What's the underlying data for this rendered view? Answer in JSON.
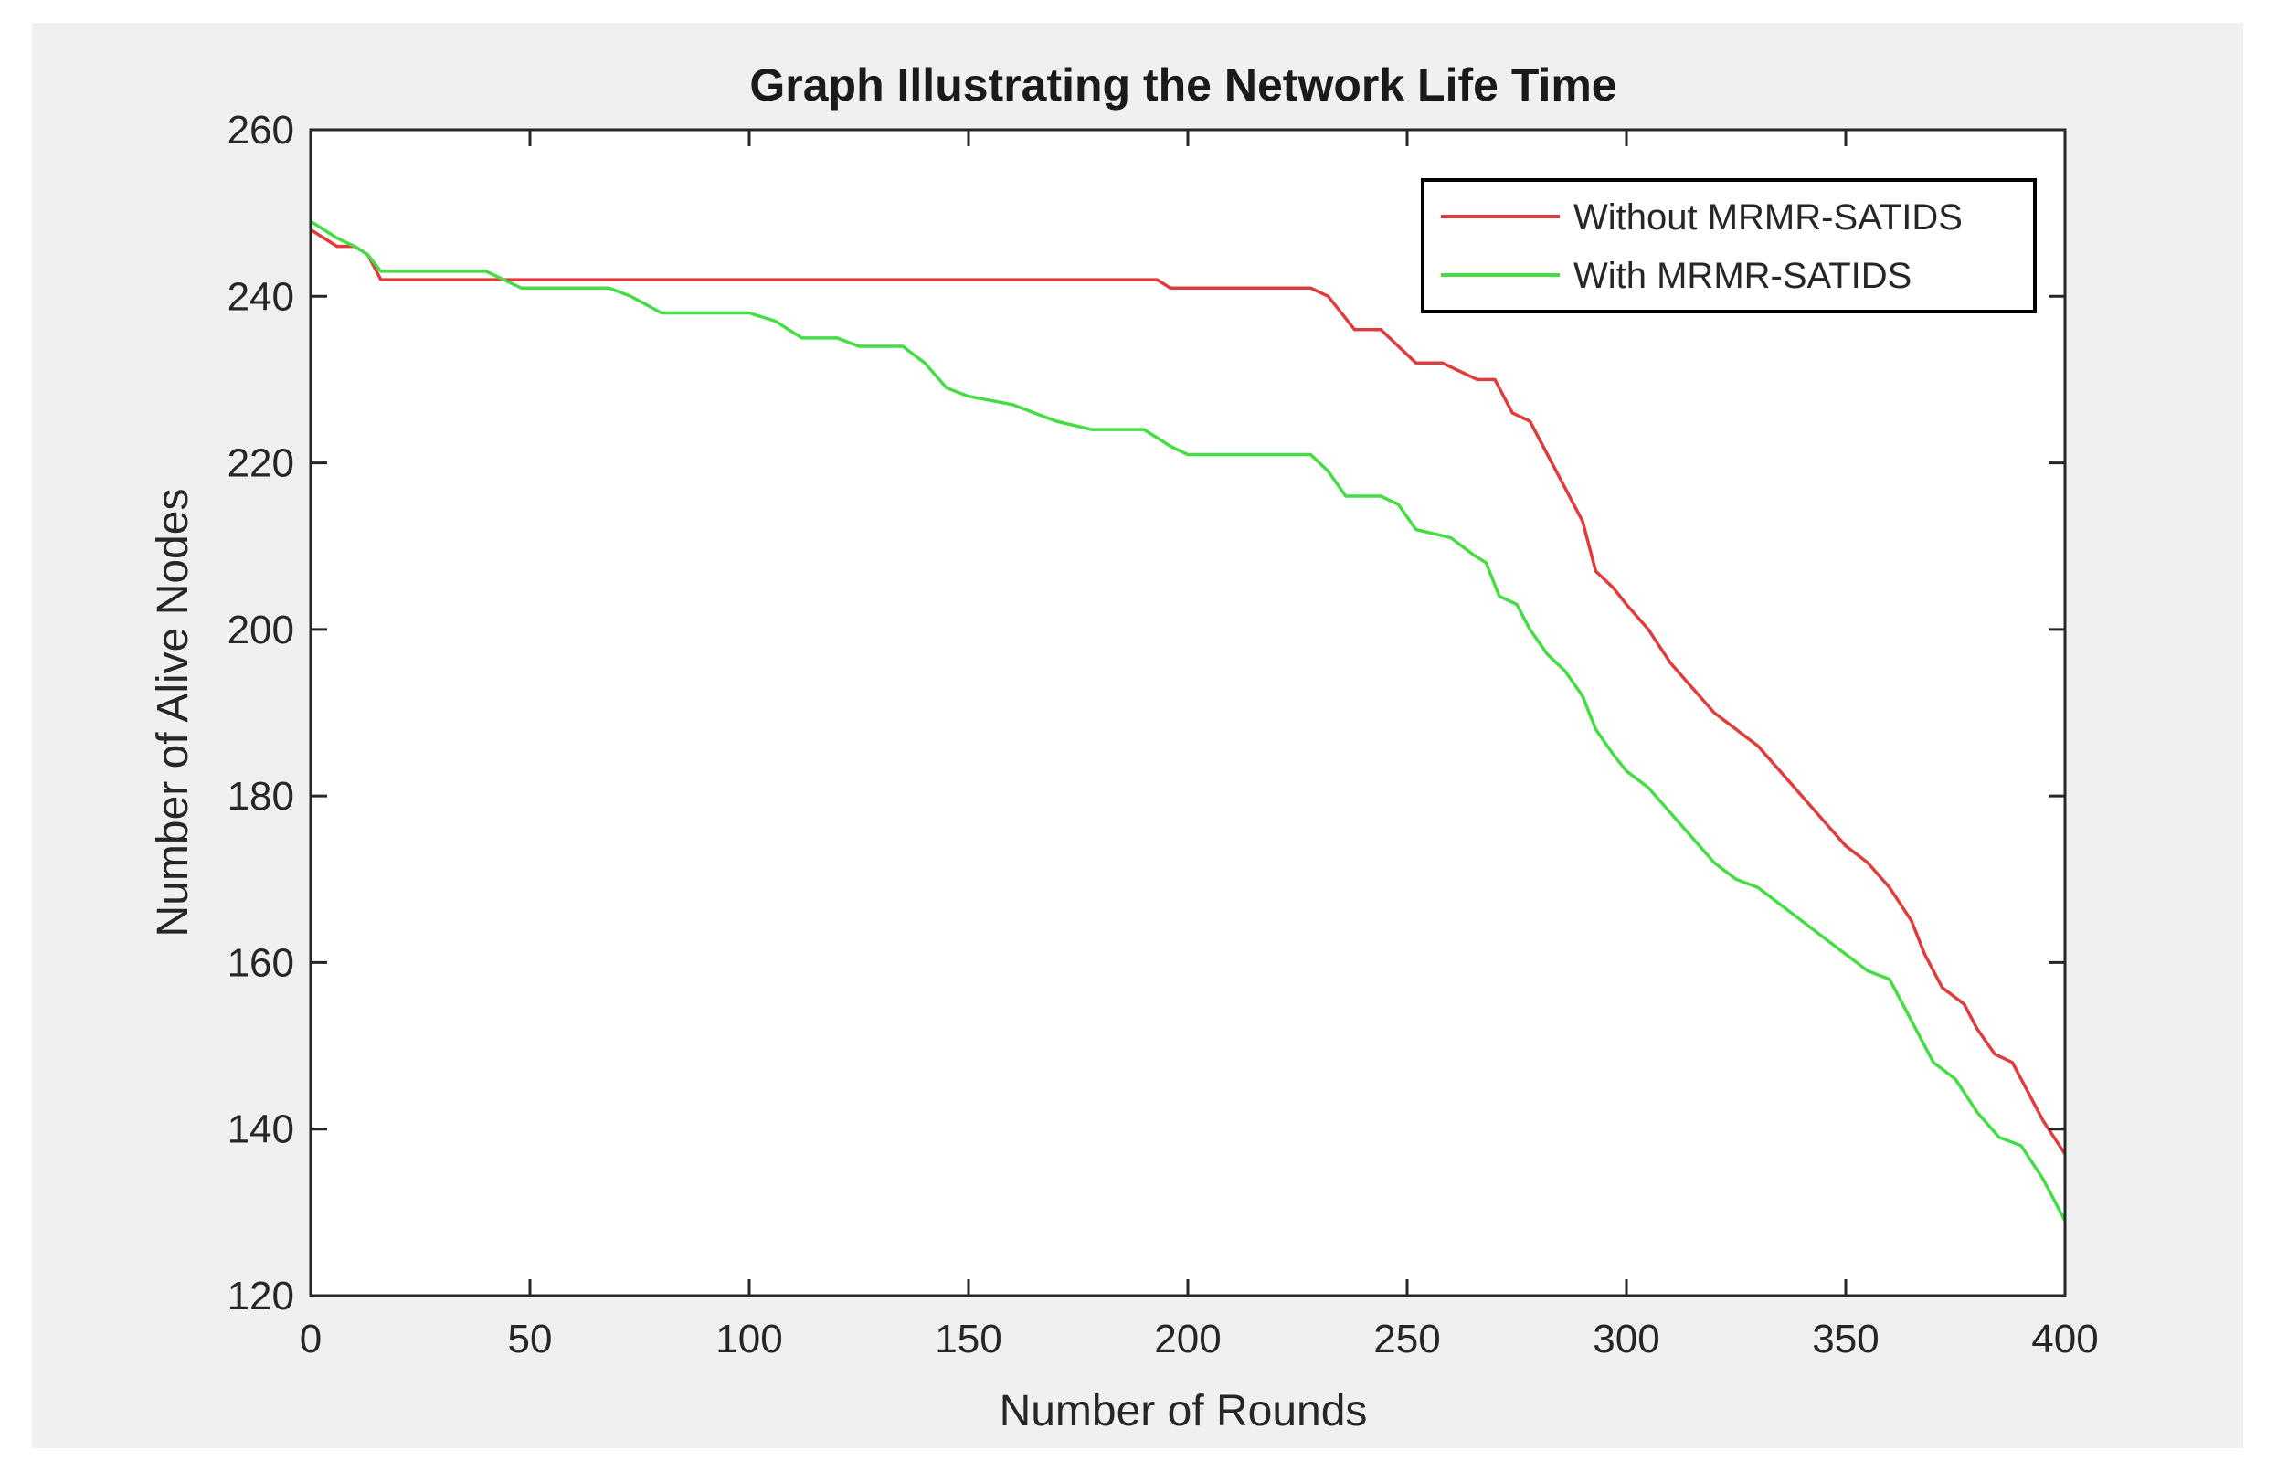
{
  "chart_data": {
    "type": "line",
    "title": "Graph Illustrating the Network Life Time",
    "xlabel": "Number of Rounds",
    "ylabel": "Number of Alive Nodes",
    "xlim": [
      0,
      400
    ],
    "ylim": [
      120,
      260
    ],
    "xticks": [
      0,
      50,
      100,
      150,
      200,
      250,
      300,
      350,
      400
    ],
    "yticks": [
      120,
      140,
      160,
      180,
      200,
      220,
      240,
      260
    ],
    "grid": false,
    "legend_position": "top-right",
    "series": [
      {
        "name": "Without MRMR-SATIDS",
        "color": "#e03c3c",
        "points": [
          [
            0,
            248
          ],
          [
            3,
            247
          ],
          [
            6,
            246
          ],
          [
            10,
            246
          ],
          [
            13,
            245
          ],
          [
            16,
            242
          ],
          [
            30,
            242
          ],
          [
            40,
            242
          ],
          [
            100,
            242
          ],
          [
            150,
            242
          ],
          [
            193,
            242
          ],
          [
            196,
            241
          ],
          [
            228,
            241
          ],
          [
            232,
            240
          ],
          [
            238,
            236
          ],
          [
            244,
            236
          ],
          [
            248,
            234
          ],
          [
            252,
            232
          ],
          [
            258,
            232
          ],
          [
            262,
            231
          ],
          [
            266,
            230
          ],
          [
            270,
            230
          ],
          [
            274,
            226
          ],
          [
            278,
            225
          ],
          [
            282,
            221
          ],
          [
            286,
            217
          ],
          [
            290,
            213
          ],
          [
            293,
            207
          ],
          [
            297,
            205
          ],
          [
            300,
            203
          ],
          [
            305,
            200
          ],
          [
            310,
            196
          ],
          [
            315,
            193
          ],
          [
            320,
            190
          ],
          [
            325,
            188
          ],
          [
            330,
            186
          ],
          [
            335,
            183
          ],
          [
            340,
            180
          ],
          [
            345,
            177
          ],
          [
            350,
            174
          ],
          [
            355,
            172
          ],
          [
            360,
            169
          ],
          [
            365,
            165
          ],
          [
            368,
            161
          ],
          [
            372,
            157
          ],
          [
            377,
            155
          ],
          [
            380,
            152
          ],
          [
            384,
            149
          ],
          [
            388,
            148
          ],
          [
            391,
            145
          ],
          [
            395,
            141
          ],
          [
            400,
            137
          ]
        ]
      },
      {
        "name": "With MRMR-SATIDS",
        "color": "#44dd44",
        "points": [
          [
            0,
            249
          ],
          [
            3,
            248
          ],
          [
            6,
            247
          ],
          [
            10,
            246
          ],
          [
            13,
            245
          ],
          [
            16,
            243
          ],
          [
            30,
            243
          ],
          [
            40,
            243
          ],
          [
            48,
            241
          ],
          [
            60,
            241
          ],
          [
            68,
            241
          ],
          [
            73,
            240
          ],
          [
            80,
            238
          ],
          [
            90,
            238
          ],
          [
            100,
            238
          ],
          [
            106,
            237
          ],
          [
            112,
            235
          ],
          [
            120,
            235
          ],
          [
            125,
            234
          ],
          [
            135,
            234
          ],
          [
            140,
            232
          ],
          [
            145,
            229
          ],
          [
            150,
            228
          ],
          [
            160,
            227
          ],
          [
            170,
            225
          ],
          [
            178,
            224
          ],
          [
            190,
            224
          ],
          [
            196,
            222
          ],
          [
            200,
            221
          ],
          [
            210,
            221
          ],
          [
            220,
            221
          ],
          [
            228,
            221
          ],
          [
            232,
            219
          ],
          [
            236,
            216
          ],
          [
            244,
            216
          ],
          [
            248,
            215
          ],
          [
            252,
            212
          ],
          [
            260,
            211
          ],
          [
            265,
            209
          ],
          [
            268,
            208
          ],
          [
            271,
            204
          ],
          [
            275,
            203
          ],
          [
            278,
            200
          ],
          [
            282,
            197
          ],
          [
            286,
            195
          ],
          [
            290,
            192
          ],
          [
            293,
            188
          ],
          [
            297,
            185
          ],
          [
            300,
            183
          ],
          [
            305,
            181
          ],
          [
            310,
            178
          ],
          [
            315,
            175
          ],
          [
            320,
            172
          ],
          [
            325,
            170
          ],
          [
            330,
            169
          ],
          [
            335,
            167
          ],
          [
            340,
            165
          ],
          [
            345,
            163
          ],
          [
            350,
            161
          ],
          [
            355,
            159
          ],
          [
            360,
            158
          ],
          [
            363,
            155
          ],
          [
            366,
            152
          ],
          [
            370,
            148
          ],
          [
            375,
            146
          ],
          [
            380,
            142
          ],
          [
            385,
            139
          ],
          [
            390,
            138
          ],
          [
            395,
            134
          ],
          [
            400,
            129
          ]
        ]
      }
    ]
  }
}
